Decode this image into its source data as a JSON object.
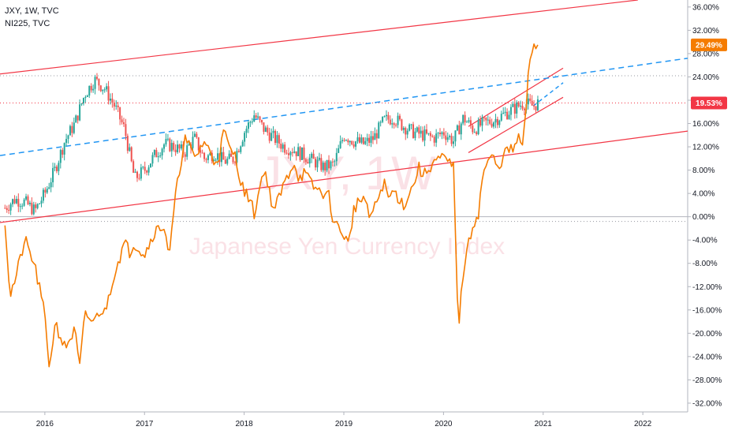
{
  "legend": {
    "series_1": "JXY, 1W, TVC",
    "series_2": "NI225, TVC"
  },
  "watermark": {
    "symbol": "JXY, 1W",
    "name": "Japanese Yen Currency Index"
  },
  "price_tags": {
    "ni225_last": "29.49%",
    "jxy_last": "19.53%"
  },
  "colors": {
    "jxy_up": "#26a69a",
    "jxy_down": "#ef5350",
    "ni225": "#f57c00",
    "channel": "#f23645",
    "dashed_trend": "#2196f3",
    "axis_line": "#b2b5be",
    "grid_zero": "#b2b5be",
    "tag_ni225": "#f57c00",
    "tag_jxy": "#f23645"
  },
  "chart_data": {
    "type": "line",
    "x_axis_labels": [
      "2016",
      "2017",
      "2018",
      "2019",
      "2020",
      "2021",
      "2022"
    ],
    "y_axis_labels": [
      "36.00%",
      "32.00%",
      "28.00%",
      "24.00%",
      "20.00%",
      "16.00%",
      "12.00%",
      "8.00%",
      "4.00%",
      "0.00%",
      "-4.00%",
      "-8.00%",
      "-12.00%",
      "-16.00%",
      "-20.00%",
      "-24.00%",
      "-28.00%",
      "-32.00%"
    ],
    "y_ticks": [
      36,
      32,
      28,
      24,
      20,
      16,
      12,
      8,
      4,
      0,
      -4,
      -8,
      -12,
      -16,
      -20,
      -24,
      -28,
      -32
    ],
    "ylim": [
      -33.5,
      37.2
    ],
    "xlim": [
      2015.55,
      2022.45
    ],
    "series": [
      {
        "name": "JXY",
        "style": "candlestick",
        "x": [
          2015.6,
          2015.7,
          2015.8,
          2015.9,
          2016.0,
          2016.1,
          2016.2,
          2016.3,
          2016.4,
          2016.5,
          2016.6,
          2016.7,
          2016.8,
          2016.9,
          2017.0,
          2017.1,
          2017.2,
          2017.3,
          2017.4,
          2017.5,
          2017.6,
          2017.7,
          2017.8,
          2017.9,
          2018.0,
          2018.1,
          2018.2,
          2018.3,
          2018.4,
          2018.5,
          2018.6,
          2018.7,
          2018.8,
          2018.9,
          2019.0,
          2019.1,
          2019.2,
          2019.3,
          2019.4,
          2019.5,
          2019.6,
          2019.7,
          2019.8,
          2019.9,
          2020.0,
          2020.1,
          2020.2,
          2020.3,
          2020.4,
          2020.5,
          2020.6,
          2020.7,
          2020.8,
          2020.9,
          2020.95
        ],
        "y": [
          1.5,
          3.0,
          2.5,
          1.0,
          4.0,
          8.0,
          13.0,
          16.0,
          21.0,
          23.5,
          22.0,
          19.0,
          15.0,
          6.5,
          8.0,
          10.5,
          12.5,
          12.0,
          11.0,
          13.5,
          10.0,
          11.0,
          9.5,
          10.0,
          14.5,
          17.5,
          15.0,
          13.5,
          12.0,
          11.5,
          10.5,
          9.5,
          8.5,
          9.0,
          14.0,
          13.0,
          12.5,
          13.5,
          16.5,
          17.0,
          15.5,
          14.5,
          14.0,
          13.5,
          14.5,
          13.0,
          17.0,
          15.0,
          16.0,
          16.5,
          17.5,
          18.5,
          19.5,
          19.0,
          19.53
        ]
      },
      {
        "name": "NI225",
        "style": "line",
        "x": [
          2015.6,
          2015.65,
          2015.7,
          2015.8,
          2015.9,
          2016.0,
          2016.05,
          2016.1,
          2016.2,
          2016.3,
          2016.35,
          2016.4,
          2016.5,
          2016.55,
          2016.6,
          2016.7,
          2016.8,
          2016.85,
          2016.9,
          2017.0,
          2017.1,
          2017.2,
          2017.25,
          2017.3,
          2017.4,
          2017.45,
          2017.5,
          2017.6,
          2017.7,
          2017.75,
          2017.8,
          2017.85,
          2017.9,
          2018.0,
          2018.05,
          2018.1,
          2018.2,
          2018.25,
          2018.3,
          2018.4,
          2018.5,
          2018.55,
          2018.6,
          2018.7,
          2018.8,
          2018.85,
          2018.9,
          2019.0,
          2019.05,
          2019.1,
          2019.2,
          2019.25,
          2019.3,
          2019.4,
          2019.45,
          2019.5,
          2019.6,
          2019.7,
          2019.75,
          2019.8,
          2019.9,
          2020.0,
          2020.1,
          2020.15,
          2020.2,
          2020.25,
          2020.3,
          2020.35,
          2020.4,
          2020.5,
          2020.55,
          2020.6,
          2020.7,
          2020.75,
          2020.8,
          2020.85,
          2020.9,
          2020.95
        ],
        "y": [
          -0.5,
          -13.5,
          -11.0,
          -4.0,
          -8.5,
          -17.0,
          -26.5,
          -18.0,
          -22.5,
          -19.5,
          -26.0,
          -17.0,
          -18.0,
          -16.0,
          -16.5,
          -9.5,
          -4.5,
          -6.0,
          -4.5,
          -6.5,
          -2.5,
          -1.5,
          -7.0,
          2.0,
          13.5,
          12.0,
          10.0,
          13.0,
          9.5,
          10.5,
          15.0,
          11.5,
          11.0,
          4.0,
          3.5,
          0.5,
          8.5,
          4.5,
          1.0,
          5.5,
          9.5,
          6.5,
          7.5,
          5.0,
          4.0,
          3.5,
          -1.0,
          -3.0,
          -5.0,
          1.5,
          3.5,
          0.0,
          1.0,
          6.0,
          3.0,
          4.5,
          2.0,
          5.5,
          8.5,
          7.0,
          9.5,
          10.0,
          8.5,
          -19.5,
          -9.0,
          -5.0,
          -1.0,
          0.5,
          8.0,
          10.5,
          7.5,
          11.0,
          11.5,
          13.5,
          12.0,
          24.0,
          29.5,
          29.49
        ]
      }
    ],
    "grid": false,
    "legend_position": "top-left"
  }
}
